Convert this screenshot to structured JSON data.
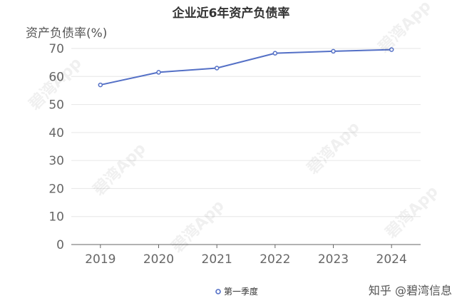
{
  "chart_data": {
    "type": "line",
    "title": "企业近6年资产负债率",
    "ylabel": "资产负债率(%)",
    "xlabel": "",
    "categories": [
      "2019",
      "2020",
      "2021",
      "2022",
      "2023",
      "2024"
    ],
    "series": [
      {
        "name": "第一季度",
        "values": [
          57.0,
          61.5,
          63.0,
          68.3,
          69.0,
          69.6
        ],
        "color": "#5470c6"
      }
    ],
    "ylim": [
      0,
      70
    ],
    "yticks": [
      0,
      10,
      20,
      30,
      40,
      50,
      60,
      70
    ],
    "grid": true,
    "legend_position": "bottom-center"
  },
  "watermark": {
    "text": "碧湾App"
  },
  "credit": {
    "text": "知乎 @碧湾信息"
  }
}
